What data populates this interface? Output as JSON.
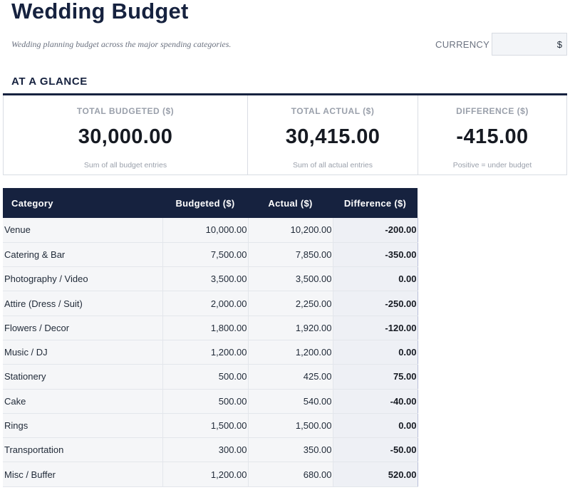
{
  "header": {
    "title": "Wedding Budget",
    "subtitle": "Wedding planning budget across the major spending categories.",
    "currency_label": "CURRENCY",
    "currency_value": "$"
  },
  "glance": {
    "heading": "AT A GLANCE",
    "cards": [
      {
        "label": "TOTAL BUDGETED ($)",
        "value": "30,000.00",
        "note": "Sum of all budget entries"
      },
      {
        "label": "TOTAL ACTUAL ($)",
        "value": "30,415.00",
        "note": "Sum of all actual entries"
      },
      {
        "label": "DIFFERENCE ($)",
        "value": "-415.00",
        "note": "Positive = under budget"
      }
    ]
  },
  "table": {
    "columns": [
      "Category",
      "Budgeted ($)",
      "Actual ($)",
      "Difference ($)"
    ],
    "rows": [
      {
        "category": "Venue",
        "budgeted": "10,000.00",
        "actual": "10,200.00",
        "difference": "-200.00"
      },
      {
        "category": "Catering & Bar",
        "budgeted": "7,500.00",
        "actual": "7,850.00",
        "difference": "-350.00"
      },
      {
        "category": "Photography / Video",
        "budgeted": "3,500.00",
        "actual": "3,500.00",
        "difference": "0.00"
      },
      {
        "category": "Attire (Dress / Suit)",
        "budgeted": "2,000.00",
        "actual": "2,250.00",
        "difference": "-250.00"
      },
      {
        "category": "Flowers / Decor",
        "budgeted": "1,800.00",
        "actual": "1,920.00",
        "difference": "-120.00"
      },
      {
        "category": "Music / DJ",
        "budgeted": "1,200.00",
        "actual": "1,200.00",
        "difference": "0.00"
      },
      {
        "category": "Stationery",
        "budgeted": "500.00",
        "actual": "425.00",
        "difference": "75.00"
      },
      {
        "category": "Cake",
        "budgeted": "500.00",
        "actual": "540.00",
        "difference": "-40.00"
      },
      {
        "category": "Rings",
        "budgeted": "1,500.00",
        "actual": "1,500.00",
        "difference": "0.00"
      },
      {
        "category": "Transportation",
        "budgeted": "300.00",
        "actual": "350.00",
        "difference": "-50.00"
      },
      {
        "category": "Misc / Buffer",
        "budgeted": "1,200.00",
        "actual": "680.00",
        "difference": "520.00"
      }
    ]
  }
}
